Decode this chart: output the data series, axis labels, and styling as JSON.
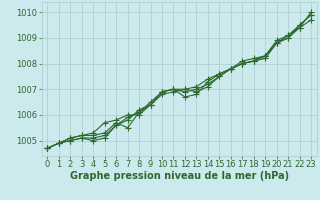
{
  "xlabel": "Graphe pression niveau de la mer (hPa)",
  "x": [
    0,
    1,
    2,
    3,
    4,
    5,
    6,
    7,
    8,
    9,
    10,
    11,
    12,
    13,
    14,
    15,
    16,
    17,
    18,
    19,
    20,
    21,
    22,
    23
  ],
  "series": [
    [
      1004.7,
      1004.9,
      1005.0,
      1005.1,
      1005.0,
      1005.1,
      1005.6,
      1005.9,
      1006.1,
      1006.4,
      1006.9,
      1007.0,
      1006.7,
      1006.8,
      1007.3,
      1007.6,
      1007.8,
      1008.0,
      1008.1,
      1008.3,
      1008.8,
      1009.1,
      1009.5,
      1009.9
    ],
    [
      1004.7,
      1004.9,
      1005.1,
      1005.2,
      1005.2,
      1005.3,
      1005.7,
      1005.5,
      1006.1,
      1006.5,
      1006.9,
      1007.0,
      1007.0,
      1006.9,
      1007.1,
      1007.5,
      1007.8,
      1008.0,
      1008.1,
      1008.2,
      1008.8,
      1009.0,
      1009.4,
      1009.7
    ],
    [
      1004.7,
      1004.9,
      1005.1,
      1005.2,
      1005.3,
      1005.7,
      1005.8,
      1006.0,
      1006.0,
      1006.4,
      1006.8,
      1006.9,
      1007.0,
      1007.1,
      1007.4,
      1007.6,
      1007.8,
      1008.0,
      1008.1,
      1008.3,
      1008.9,
      1009.1,
      1009.4,
      1010.0
    ],
    [
      1004.7,
      1004.9,
      1005.0,
      1005.1,
      1005.1,
      1005.2,
      1005.6,
      1005.8,
      1006.2,
      1006.4,
      1006.9,
      1007.0,
      1006.9,
      1007.0,
      1007.2,
      1007.5,
      1007.8,
      1008.1,
      1008.2,
      1008.3,
      1008.8,
      1009.0,
      1009.5,
      1009.9
    ]
  ],
  "line_color": "#2d6a2d",
  "marker": "+",
  "markersize": 4,
  "linewidth": 0.8,
  "ylim": [
    1004.4,
    1010.4
  ],
  "yticks": [
    1005,
    1006,
    1007,
    1008,
    1009,
    1010
  ],
  "xticks": [
    0,
    1,
    2,
    3,
    4,
    5,
    6,
    7,
    8,
    9,
    10,
    11,
    12,
    13,
    14,
    15,
    16,
    17,
    18,
    19,
    20,
    21,
    22,
    23
  ],
  "bg_color": "#cce9ee",
  "grid_color": "#aacccc",
  "label_color": "#2d6a2d",
  "xlabel_fontsize": 7,
  "tick_fontsize": 6,
  "markeredgewidth": 0.8
}
